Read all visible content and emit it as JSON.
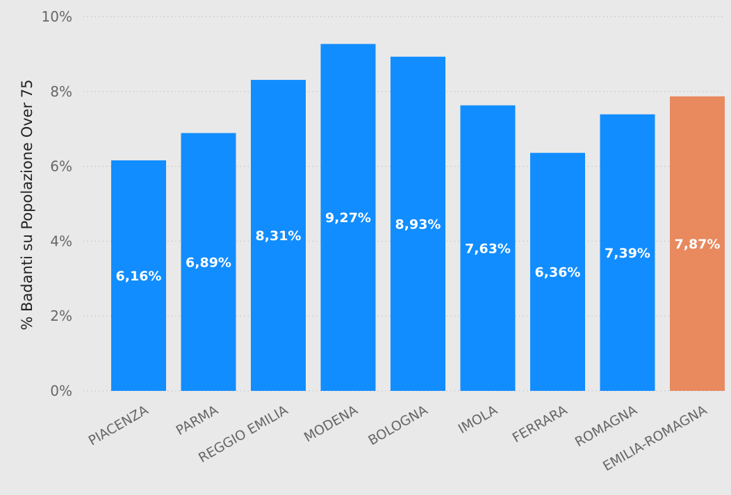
{
  "chart_data": {
    "type": "bar",
    "categories": [
      "PIACENZA",
      "PARMA",
      "REGGIO EMILIA",
      "MODENA",
      "BOLOGNA",
      "IMOLA",
      "FERRARA",
      "ROMAGNA",
      "EMILIA-ROMAGNA"
    ],
    "values": [
      6.16,
      6.89,
      8.31,
      9.27,
      8.93,
      7.63,
      6.36,
      7.39,
      7.87
    ],
    "data_labels": [
      "6,16%",
      "6,89%",
      "8,31%",
      "9,27%",
      "8,93%",
      "7,63%",
      "6,36%",
      "7,39%",
      "7,87%"
    ],
    "ylabel": "% Badanti su Popolazione Over 75",
    "xlabel": "",
    "ylim": [
      0,
      10
    ],
    "yticks": [
      0,
      2,
      4,
      6,
      8,
      10
    ],
    "ytick_labels": [
      "0%",
      "2%",
      "4%",
      "6%",
      "8%",
      "10%"
    ],
    "grid": true,
    "colors": {
      "bar": "#118dff",
      "highlight": "#e8895e",
      "background": "#e9e9e9"
    },
    "highlight_category": "EMILIA-ROMAGNA"
  }
}
